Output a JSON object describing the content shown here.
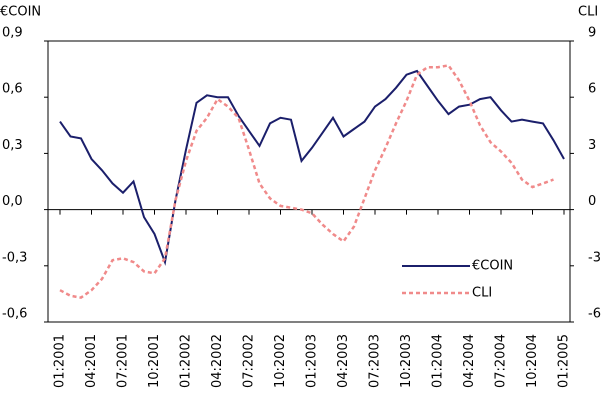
{
  "chart_data": {
    "type": "line",
    "y_label": "€COIN",
    "y2_label": "CLI",
    "categories": [
      "01:2001",
      null,
      null,
      "04:2001",
      null,
      null,
      "07:2001",
      null,
      null,
      "10:2001",
      null,
      null,
      "01:2002",
      null,
      null,
      "04:2002",
      null,
      null,
      "07:2002",
      null,
      null,
      "10:2002",
      null,
      null,
      "01:2003",
      null,
      null,
      "04:2003",
      null,
      null,
      "07:2003",
      null,
      null,
      "10:2003",
      null,
      null,
      "01:2004",
      null,
      null,
      "04:2004",
      null,
      null,
      "07:2004",
      null,
      null,
      "10:2004",
      null,
      null,
      "01:2005"
    ],
    "series": [
      {
        "name": "€COIN",
        "color": "#1b1f6b",
        "dashed": false,
        "values": [
          0.47,
          0.39,
          0.38,
          0.27,
          0.21,
          0.14,
          0.09,
          0.15,
          -0.04,
          -0.13,
          -0.28,
          0.05,
          0.32,
          0.57,
          0.61,
          0.6,
          0.6,
          0.5,
          0.42,
          0.34,
          0.46,
          0.49,
          0.48,
          0.26,
          0.33,
          0.41,
          0.49,
          0.39,
          0.43,
          0.47,
          0.55,
          0.59,
          0.65,
          0.72,
          0.74,
          0.66,
          0.58,
          0.51,
          0.55,
          0.56,
          0.59,
          0.6,
          0.53,
          0.47,
          0.48,
          0.47,
          0.46,
          0.37,
          0.27
        ]
      },
      {
        "name": "CLI",
        "color": "#f08a8a",
        "dashed": true,
        "axis": "y2",
        "values": [
          -4.3,
          -4.6,
          -4.7,
          -4.3,
          -3.7,
          -2.7,
          -2.6,
          -2.8,
          -3.3,
          -3.4,
          -2.6,
          0.5,
          2.6,
          4.2,
          4.9,
          5.9,
          5.5,
          4.9,
          3.2,
          1.4,
          0.6,
          0.2,
          0.1,
          0,
          -0.2,
          -0.8,
          -1.3,
          -1.7,
          -0.9,
          0.6,
          2.1,
          3.3,
          4.6,
          5.8,
          7.2,
          7.6,
          7.6,
          7.7,
          6.9,
          5.8,
          4.5,
          3.6,
          3.1,
          2.5,
          1.6,
          1.2,
          1.4,
          1.6,
          null
        ]
      }
    ],
    "ylim": [
      -0.6,
      0.9
    ],
    "yticks": [
      {
        "value": -0.6,
        "label": "-0,6"
      },
      {
        "value": -0.3,
        "label": "-0,3"
      },
      {
        "value": 0,
        "label": "0,0"
      },
      {
        "value": 0.3,
        "label": "0,3"
      },
      {
        "value": 0.6,
        "label": "0,6"
      },
      {
        "value": 0.9,
        "label": "0,9"
      }
    ],
    "y2lim": [
      -6,
      9
    ],
    "y2ticks": [
      -6,
      -3,
      0,
      3,
      6,
      9
    ],
    "legend": "lower right",
    "grid": false
  }
}
